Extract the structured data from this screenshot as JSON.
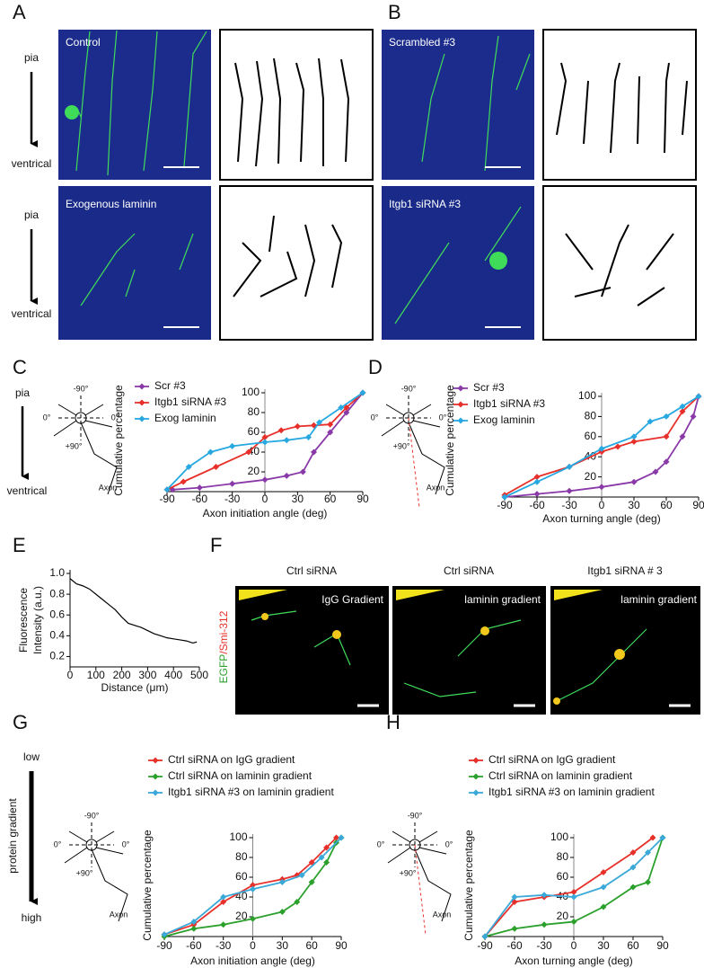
{
  "figure": {
    "panel_labels": [
      "A",
      "B",
      "C",
      "D",
      "E",
      "F",
      "G",
      "H"
    ],
    "orientation": [
      {
        "top": "pia",
        "bottom": "ventrical"
      },
      {
        "top": "pia",
        "bottom": "ventrical"
      },
      {
        "top": "pia",
        "bottom": "ventrical"
      }
    ],
    "gradient_axis": {
      "top": "low",
      "bottom": "high",
      "label": "protein gradient"
    },
    "image_labels": [
      "Control",
      "Exogenous laminin",
      "Scrambled #3",
      "Itgb1 siRNA #3"
    ],
    "diagrams": [
      {
        "top": "-90°",
        "left": "0°",
        "right": "0°",
        "bottom": "+90°",
        "axon": "Axon"
      },
      {
        "top": "-90°",
        "left": "0°",
        "right": "0°",
        "bottom": "+90°",
        "axon": "Axon"
      },
      {
        "top": "-90°",
        "left": "0°",
        "right": "0°",
        "bottom": "+90°",
        "axon": "Axon"
      },
      {
        "top": "-90°",
        "left": "0°",
        "right": "0°",
        "bottom": "+90°",
        "axon": "Axon"
      }
    ],
    "panel_f": {
      "columns": [
        "Ctrl siRNA",
        "Ctrl siRNA",
        "Itgb1 siRNA # 3"
      ],
      "gradients": [
        "IgG Gradient",
        "laminin gradient",
        "laminin gradient"
      ],
      "stain_green": "EGFP",
      "stain_red": "/Smi-312"
    }
  },
  "chart_data": [
    {
      "type": "line",
      "x_label": "Axon initiation angle (deg)",
      "y_label": "Cumulative percentage",
      "xlim": [
        -90,
        90
      ],
      "ylim": [
        0,
        100
      ],
      "xticks": [
        -90,
        -60,
        -30,
        0,
        30,
        60,
        90
      ],
      "yticks": [
        20,
        40,
        60,
        80,
        100
      ],
      "y_axis_position": "zero",
      "legend": "top-left",
      "markers": true,
      "series": [
        {
          "name": "Scr #3",
          "color": "#8a3aa8",
          "x": [
            -85,
            -60,
            -30,
            0,
            20,
            35,
            45,
            60,
            75,
            90
          ],
          "values": [
            2,
            4,
            8,
            12,
            16,
            20,
            40,
            60,
            80,
            100
          ]
        },
        {
          "name": "Itgb1 siRNA #3",
          "color": "#e8302a",
          "x": [
            -90,
            -75,
            -45,
            -15,
            0,
            15,
            30,
            45,
            60,
            75,
            90
          ],
          "values": [
            2,
            10,
            25,
            40,
            55,
            62,
            66,
            67,
            68,
            85,
            100
          ]
        },
        {
          "name": "Exog laminin",
          "color": "#28a8e0",
          "x": [
            -90,
            -70,
            -50,
            -30,
            0,
            20,
            40,
            50,
            70,
            90
          ],
          "values": [
            2,
            25,
            40,
            46,
            50,
            52,
            55,
            70,
            85,
            100
          ]
        }
      ]
    },
    {
      "type": "line",
      "x_label": "Axon turning angle (deg)",
      "y_label": "Cumulative percentage",
      "xlim": [
        -90,
        90
      ],
      "ylim": [
        0,
        100
      ],
      "xticks": [
        -90,
        -60,
        -30,
        0,
        30,
        60,
        90
      ],
      "yticks": [
        20,
        40,
        60,
        80,
        100
      ],
      "y_axis_position": "zero",
      "legend": "top-left",
      "markers": true,
      "series": [
        {
          "name": "Scr #3",
          "color": "#8a3aa8",
          "x": [
            -90,
            -60,
            -30,
            0,
            30,
            50,
            60,
            75,
            85,
            90
          ],
          "values": [
            0,
            3,
            6,
            10,
            15,
            25,
            35,
            60,
            80,
            100
          ]
        },
        {
          "name": "Itgb1 siRNA #3",
          "color": "#e8302a",
          "x": [
            -90,
            -60,
            -30,
            0,
            15,
            30,
            60,
            75,
            90
          ],
          "values": [
            2,
            20,
            30,
            45,
            50,
            55,
            60,
            85,
            100
          ]
        },
        {
          "name": "Exog laminin",
          "color": "#28a8e0",
          "x": [
            -90,
            -60,
            -30,
            0,
            30,
            45,
            60,
            75,
            90
          ],
          "values": [
            0,
            15,
            30,
            48,
            60,
            75,
            80,
            90,
            100
          ]
        }
      ]
    },
    {
      "type": "line",
      "x_label": "Distance (μm)",
      "y_label": [
        "Fluorescence",
        "Intensity (a.u.)"
      ],
      "xlim": [
        0,
        500
      ],
      "ylim": [
        0.1,
        1.0
      ],
      "xticks": [
        0,
        100,
        200,
        300,
        400,
        500
      ],
      "yticks": [
        {
          "value": 0.2,
          "label": "0.2"
        },
        {
          "value": 0.4,
          "label": "0.4"
        },
        {
          "value": 0.6,
          "label": "0.6"
        },
        {
          "value": 0.8,
          "label": "0.8"
        },
        {
          "value": 1.0,
          "label": "1.0"
        }
      ],
      "y_axis_position": "left",
      "markers": false,
      "color": "#000000",
      "x": [
        0,
        25,
        50,
        75,
        100,
        125,
        150,
        175,
        200,
        225,
        250,
        275,
        300,
        325,
        350,
        375,
        400,
        425,
        450,
        475,
        490
      ],
      "values": [
        0.95,
        0.9,
        0.88,
        0.85,
        0.8,
        0.75,
        0.7,
        0.65,
        0.58,
        0.52,
        0.5,
        0.48,
        0.45,
        0.42,
        0.4,
        0.38,
        0.37,
        0.36,
        0.35,
        0.33,
        0.34
      ]
    },
    {
      "type": "line",
      "x_label": "Axon initiation angle (deg)",
      "y_label": "Cumulative percentage",
      "xlim": [
        -90,
        90
      ],
      "ylim": [
        0,
        100
      ],
      "xticks": [
        -90,
        -60,
        -30,
        0,
        30,
        60,
        90
      ],
      "yticks": [
        20,
        40,
        60,
        80,
        100
      ],
      "y_axis_position": "zero",
      "legend": "top-left",
      "markers": true,
      "series": [
        {
          "name": "Ctrl siRNA on IgG gradient",
          "color": "#e8302a",
          "x": [
            -90,
            -60,
            -30,
            0,
            30,
            45,
            60,
            75,
            85
          ],
          "values": [
            2,
            12,
            35,
            52,
            58,
            62,
            75,
            90,
            100
          ]
        },
        {
          "name": "Ctrl siRNA on laminin gradient",
          "color": "#2ca02c",
          "x": [
            -90,
            -60,
            -30,
            0,
            30,
            45,
            60,
            75,
            85,
            90
          ],
          "values": [
            0,
            8,
            12,
            18,
            25,
            35,
            55,
            75,
            95,
            100
          ]
        },
        {
          "name": "Itgb1 siRNA #3 on  laminin gradient",
          "color": "#3aa8d8",
          "x": [
            -90,
            -60,
            -30,
            0,
            30,
            50,
            70,
            90
          ],
          "values": [
            2,
            15,
            40,
            48,
            55,
            62,
            80,
            100
          ]
        }
      ]
    },
    {
      "type": "line",
      "x_label": "Axon turning angle (deg)",
      "y_label": "Cumulative percentage",
      "xlim": [
        -90,
        90
      ],
      "ylim": [
        0,
        100
      ],
      "xticks": [
        -90,
        -60,
        -30,
        0,
        30,
        60,
        90
      ],
      "yticks": [
        20,
        40,
        60,
        80,
        100
      ],
      "y_axis_position": "zero",
      "legend": "top-left",
      "markers": true,
      "series": [
        {
          "name": "Ctrl siRNA on IgG gradient",
          "color": "#e8302a",
          "x": [
            -90,
            -60,
            -30,
            0,
            30,
            60,
            80
          ],
          "values": [
            0,
            35,
            40,
            45,
            65,
            85,
            100
          ]
        },
        {
          "name": "Ctrl siRNA on laminin gradient",
          "color": "#2ca02c",
          "x": [
            -90,
            -60,
            -30,
            0,
            30,
            60,
            75,
            90
          ],
          "values": [
            0,
            8,
            12,
            15,
            30,
            50,
            55,
            100
          ]
        },
        {
          "name": "Itgb1 siRNA #3 on  laminin gradient",
          "color": "#3aa8d8",
          "x": [
            -90,
            -60,
            -30,
            0,
            30,
            60,
            75,
            90
          ],
          "values": [
            0,
            40,
            42,
            40,
            50,
            70,
            85,
            100
          ]
        }
      ]
    }
  ]
}
